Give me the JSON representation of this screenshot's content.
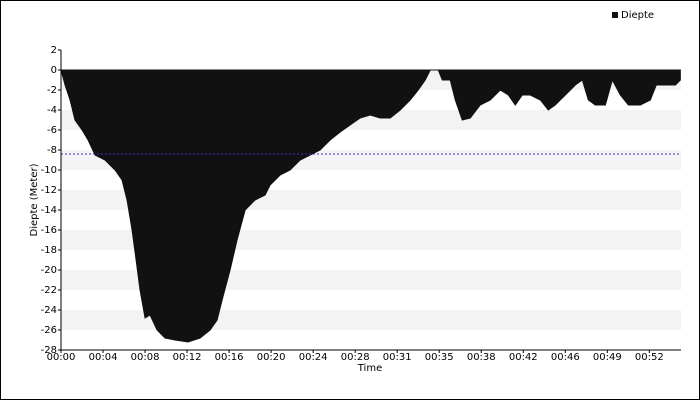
{
  "chart_data": {
    "type": "area",
    "x_label": "Time",
    "y_label": "Diepte (Meter)",
    "series": [
      {
        "name": "Diepte",
        "color": "#111111",
        "x": [
          0,
          0.37,
          0.83,
          1.28,
          1.93,
          2.48,
          3.12,
          4.03,
          4.95,
          5.59,
          6.05,
          6.51,
          6.88,
          7.24,
          7.7,
          8.16,
          8.8,
          9.53,
          10.45,
          11.64,
          12.74,
          13.66,
          14.3,
          14.76,
          15.49,
          16.13,
          16.87,
          17.78,
          18.7,
          19.16,
          20.08,
          20.99,
          21.91,
          22.83,
          23.74,
          24.66,
          25.58,
          26.49,
          27.41,
          28.33,
          29.24,
          30.16,
          31.08,
          31.99,
          32.73,
          33.37,
          33.83,
          34.56,
          34.93,
          35.66,
          36.12,
          36.76,
          37.49,
          38.41,
          39.33,
          40.24,
          40.98,
          41.62,
          42.26,
          42.99,
          43.91,
          44.64,
          45.28,
          46.2,
          47.12,
          47.76,
          48.31,
          48.95,
          49.87,
          50.51,
          51.24,
          51.98,
          53.08,
          53.99,
          54.54,
          55.37,
          56.29,
          56.74
        ],
        "values": [
          0,
          -1.5,
          -3,
          -5,
          -6,
          -7,
          -8.5,
          -9,
          -10,
          -11,
          -13,
          -16,
          -19,
          -22,
          -24.8,
          -24.5,
          -26,
          -26.8,
          -27,
          -27.2,
          -26.8,
          -26,
          -25,
          -23,
          -20,
          -17,
          -14,
          -13,
          -12.5,
          -11.5,
          -10.5,
          -10,
          -9,
          -8.5,
          -8,
          -7,
          -6.2,
          -5.5,
          -4.8,
          -4.5,
          -4.8,
          -4.8,
          -4,
          -3,
          -2,
          -1,
          0,
          0,
          -1,
          -1,
          -3,
          -5,
          -4.8,
          -3.5,
          -3,
          -2,
          -2.5,
          -3.5,
          -2.5,
          -2.5,
          -3,
          -4,
          -3.5,
          -2.5,
          -1.5,
          -1,
          -3,
          -3.5,
          -3.5,
          -1,
          -2.5,
          -3.5,
          -3.5,
          -3,
          -1.5,
          -1.5,
          -1.5,
          -1
        ]
      }
    ],
    "average_line": {
      "value": -8.4,
      "color": "#3333cc"
    },
    "xlim": [
      0,
      56.8
    ],
    "ylim": [
      -28,
      2
    ],
    "xticks": [
      {
        "value": 0,
        "label": "00:00"
      },
      {
        "value": 3.85,
        "label": "00:04"
      },
      {
        "value": 7.7,
        "label": "00:08"
      },
      {
        "value": 11.55,
        "label": "00:12"
      },
      {
        "value": 15.4,
        "label": "00:16"
      },
      {
        "value": 19.25,
        "label": "00:20"
      },
      {
        "value": 23.1,
        "label": "00:24"
      },
      {
        "value": 26.95,
        "label": "00:28"
      },
      {
        "value": 30.8,
        "label": "00:31"
      },
      {
        "value": 34.65,
        "label": "00:35"
      },
      {
        "value": 38.5,
        "label": "00:38"
      },
      {
        "value": 42.35,
        "label": "00:42"
      },
      {
        "value": 46.2,
        "label": "00:46"
      },
      {
        "value": 50.05,
        "label": "00:49"
      },
      {
        "value": 53.9,
        "label": "00:52"
      }
    ],
    "yticks": [
      2,
      0,
      -2,
      -4,
      -6,
      -8,
      -10,
      -12,
      -14,
      -16,
      -18,
      -20,
      -22,
      -24,
      -26,
      -28
    ],
    "grid": "bands",
    "legend": "top-right"
  }
}
